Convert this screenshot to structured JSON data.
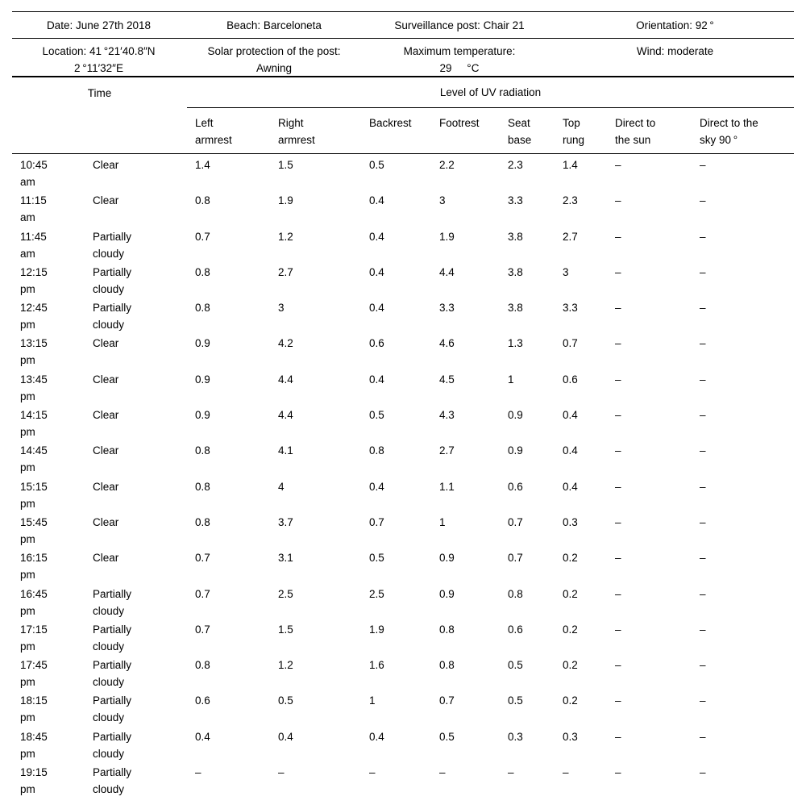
{
  "info": {
    "date": "Date: June 27th 2018",
    "beach": "Beach: Barceloneta",
    "post": "Surveillance post: Chair 21",
    "orientation": "Orientation: 92 °",
    "location": "Location: 41 °21′40.8″N\n2 °11′32″E",
    "protection": "Solar protection of the post:\nAwning",
    "max_temperature": "Maximum temperature:\n29     °C",
    "wind": "Wind: moderate"
  },
  "headers": {
    "time_label": "Time",
    "uv_group_label": "Level of UV radiation",
    "columns": [
      "Left\narmrest",
      "Right\narmrest",
      "Backrest",
      "Footrest",
      "Seat\nbase",
      "Top\nrung",
      "Direct to\nthe sun",
      "Direct to the\nsky 90 °"
    ]
  },
  "table": {
    "column_keys": [
      "time",
      "sky-condition",
      "left-armrest",
      "right-armrest",
      "backrest",
      "footrest",
      "seat-base",
      "top-rung",
      "direct-to-sun",
      "direct-to-sky"
    ],
    "rows": [
      [
        "10:45\nam",
        "Clear",
        "1.4",
        "1.5",
        "0.5",
        "2.2",
        "2.3",
        "1.4",
        "–",
        "–"
      ],
      [
        "11:15\nam",
        "Clear",
        "0.8",
        "1.9",
        "0.4",
        "3",
        "3.3",
        "2.3",
        "–",
        "–"
      ],
      [
        "11:45\nam",
        "Partially\ncloudy",
        "0.7",
        "1.2",
        "0.4",
        "1.9",
        "3.8",
        "2.7",
        "–",
        "–"
      ],
      [
        "12:15\npm",
        "Partially\ncloudy",
        "0.8",
        "2.7",
        "0.4",
        "4.4",
        "3.8",
        "3",
        "–",
        "–"
      ],
      [
        "12:45\npm",
        "Partially\ncloudy",
        "0.8",
        "3",
        "0.4",
        "3.3",
        "3.8",
        "3.3",
        "–",
        "–"
      ],
      [
        "13:15\npm",
        "Clear",
        "0.9",
        "4.2",
        "0.6",
        "4.6",
        "1.3",
        "0.7",
        "–",
        "–"
      ],
      [
        "13:45\npm",
        "Clear",
        "0.9",
        "4.4",
        "0.4",
        "4.5",
        "1",
        "0.6",
        "–",
        "–"
      ],
      [
        "14:15\npm",
        "Clear",
        "0.9",
        "4.4",
        "0.5",
        "4.3",
        "0.9",
        "0.4",
        "–",
        "–"
      ],
      [
        "14:45\npm",
        "Clear",
        "0.8",
        "4.1",
        "0.8",
        "2.7",
        "0.9",
        "0.4",
        "–",
        "–"
      ],
      [
        "15:15\npm",
        "Clear",
        "0.8",
        "4",
        "0.4",
        "1.1",
        "0.6",
        "0.4",
        "–",
        "–"
      ],
      [
        "15:45\npm",
        "Clear",
        "0.8",
        "3.7",
        "0.7",
        "1",
        "0.7",
        "0.3",
        "–",
        "–"
      ],
      [
        "16:15\npm",
        "Clear",
        "0.7",
        "3.1",
        "0.5",
        "0.9",
        "0.7",
        "0.2",
        "–",
        "–"
      ],
      [
        "16:45\npm",
        "Partially\ncloudy",
        "0.7",
        "2.5",
        "2.5",
        "0.9",
        "0.8",
        "0.2",
        "–",
        "–"
      ],
      [
        "17:15\npm",
        "Partially\ncloudy",
        "0.7",
        "1.5",
        "1.9",
        "0.8",
        "0.6",
        "0.2",
        "–",
        "–"
      ],
      [
        "17:45\npm",
        "Partially\ncloudy",
        "0.8",
        "1.2",
        "1.6",
        "0.8",
        "0.5",
        "0.2",
        "–",
        "–"
      ],
      [
        "18:15\npm",
        "Partially\ncloudy",
        "0.6",
        "0.5",
        "1",
        "0.7",
        "0.5",
        "0.2",
        "–",
        "–"
      ],
      [
        "18:45\npm",
        "Partially\ncloudy",
        "0.4",
        "0.4",
        "0.4",
        "0.5",
        "0.3",
        "0.3",
        "–",
        "–"
      ],
      [
        "19:15\npm",
        "Partially\ncloudy",
        "–",
        "–",
        "–",
        "–",
        "–",
        "–",
        "–",
        "–"
      ]
    ]
  }
}
